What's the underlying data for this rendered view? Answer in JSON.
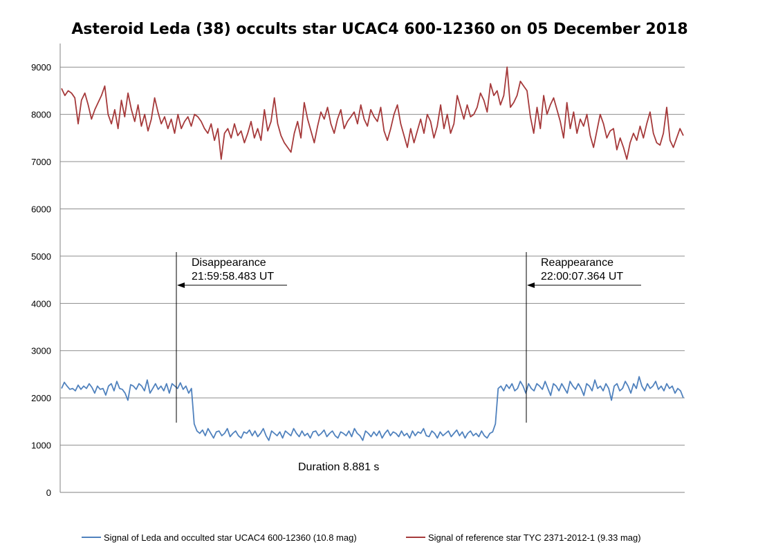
{
  "chart_data": {
    "type": "line",
    "title": "Asteroid Leda (38) occults star UCAC4 600-12360 on 05 December 2018",
    "xlabel": "",
    "ylabel": "",
    "ylim": [
      0,
      9500
    ],
    "yticks": [
      0,
      1000,
      2000,
      3000,
      4000,
      5000,
      6000,
      7000,
      8000,
      9000
    ],
    "grid": true,
    "legend_position": "bottom",
    "series": [
      {
        "name": "Signal of Leda and occulted star UCAC4 600-12360 (10.8 mag)",
        "color": "#4f81bd",
        "values": [
          2200,
          2330,
          2250,
          2180,
          2200,
          2150,
          2270,
          2180,
          2250,
          2200,
          2300,
          2220,
          2100,
          2250,
          2180,
          2200,
          2060,
          2250,
          2300,
          2150,
          2350,
          2200,
          2180,
          2100,
          1950,
          2280,
          2250,
          2180,
          2300,
          2250,
          2150,
          2380,
          2100,
          2200,
          2300,
          2180,
          2250,
          2150,
          2300,
          2100,
          2300,
          2250,
          2200,
          2320,
          2180,
          2250,
          2100,
          2200,
          1450,
          1300,
          1250,
          1320,
          1200,
          1350,
          1250,
          1150,
          1280,
          1300,
          1200,
          1250,
          1350,
          1180,
          1250,
          1300,
          1200,
          1150,
          1280,
          1250,
          1320,
          1200,
          1300,
          1180,
          1250,
          1350,
          1200,
          1100,
          1300,
          1250,
          1200,
          1280,
          1150,
          1300,
          1250,
          1200,
          1350,
          1250,
          1180,
          1300,
          1200,
          1250,
          1150,
          1280,
          1300,
          1200,
          1250,
          1320,
          1180,
          1250,
          1300,
          1200,
          1150,
          1280,
          1250,
          1200,
          1300,
          1180,
          1350,
          1250,
          1200,
          1100,
          1300,
          1250,
          1180,
          1280,
          1200,
          1300,
          1150,
          1250,
          1320,
          1200,
          1280,
          1250,
          1180,
          1300,
          1200,
          1250,
          1150,
          1300,
          1200,
          1280,
          1250,
          1350,
          1200,
          1180,
          1300,
          1250,
          1150,
          1280,
          1200,
          1250,
          1300,
          1180,
          1250,
          1320,
          1200,
          1280,
          1150,
          1250,
          1300,
          1200,
          1250,
          1180,
          1300,
          1200,
          1150,
          1250,
          1280,
          1450,
          2200,
          2250,
          2150,
          2280,
          2200,
          2300,
          2150,
          2200,
          2350,
          2250,
          2100,
          2300,
          2200,
          2150,
          2300,
          2250,
          2180,
          2350,
          2200,
          2050,
          2300,
          2250,
          2150,
          2300,
          2200,
          2100,
          2350,
          2250,
          2180,
          2300,
          2200,
          2050,
          2300,
          2250,
          2150,
          2380,
          2200,
          2250,
          2150,
          2300,
          2200,
          1950,
          2250,
          2300,
          2150,
          2200,
          2350,
          2250,
          2100,
          2300,
          2200,
          2450,
          2250,
          2150,
          2300,
          2200,
          2250,
          2350,
          2180,
          2250,
          2150,
          2300,
          2200,
          2250,
          2100,
          2200,
          2150,
          2000
        ]
      },
      {
        "name": "Signal of reference star TYC 2371-2012-1 (9.33 mag)",
        "color": "#a5393a",
        "values": [
          8550,
          8400,
          8500,
          8450,
          8350,
          7800,
          8300,
          8450,
          8200,
          7900,
          8100,
          8250,
          8400,
          8600,
          8000,
          7800,
          8100,
          7700,
          8300,
          7950,
          8450,
          8100,
          7850,
          8200,
          7750,
          8000,
          7650,
          7900,
          8350,
          8050,
          7800,
          7950,
          7700,
          7900,
          7600,
          8000,
          7700,
          7850,
          7950,
          7750,
          8000,
          7950,
          7850,
          7700,
          7600,
          7800,
          7450,
          7700,
          7050,
          7600,
          7700,
          7500,
          7800,
          7550,
          7650,
          7400,
          7600,
          7850,
          7500,
          7700,
          7450,
          8100,
          7650,
          7850,
          8350,
          7800,
          7550,
          7400,
          7300,
          7200,
          7600,
          7850,
          7500,
          8250,
          7900,
          7650,
          7400,
          7750,
          8050,
          7900,
          8150,
          7800,
          7600,
          7900,
          8100,
          7700,
          7850,
          7950,
          8050,
          7800,
          8200,
          7900,
          7750,
          8100,
          7950,
          7850,
          8150,
          7650,
          7450,
          7700,
          8000,
          8200,
          7800,
          7550,
          7300,
          7700,
          7400,
          7650,
          7900,
          7600,
          8000,
          7850,
          7500,
          7750,
          8200,
          7700,
          8000,
          7600,
          7800,
          8400,
          8150,
          7900,
          8200,
          7950,
          8000,
          8150,
          8450,
          8300,
          8050,
          8650,
          8400,
          8500,
          8200,
          8400,
          9000,
          8150,
          8250,
          8400,
          8700,
          8600,
          8500,
          7950,
          7600,
          8150,
          7700,
          8400,
          8000,
          8200,
          8350,
          8100,
          7850,
          7500,
          8250,
          7700,
          8050,
          7600,
          7900,
          7750,
          8000,
          7550,
          7300,
          7650,
          8000,
          7800,
          7500,
          7650,
          7700,
          7250,
          7500,
          7300,
          7050,
          7400,
          7600,
          7450,
          7750,
          7500,
          7800,
          8050,
          7600,
          7400,
          7350,
          7600,
          8150,
          7450,
          7300,
          7500,
          7700,
          7550
        ]
      }
    ]
  },
  "annotations": {
    "disappearance_label": "Disappearance",
    "disappearance_time": "21:59:58.483 UT",
    "reappearance_label": "Reappearance",
    "reappearance_time": "22:00:07.364 UT",
    "duration": "Duration 8.881 s"
  }
}
